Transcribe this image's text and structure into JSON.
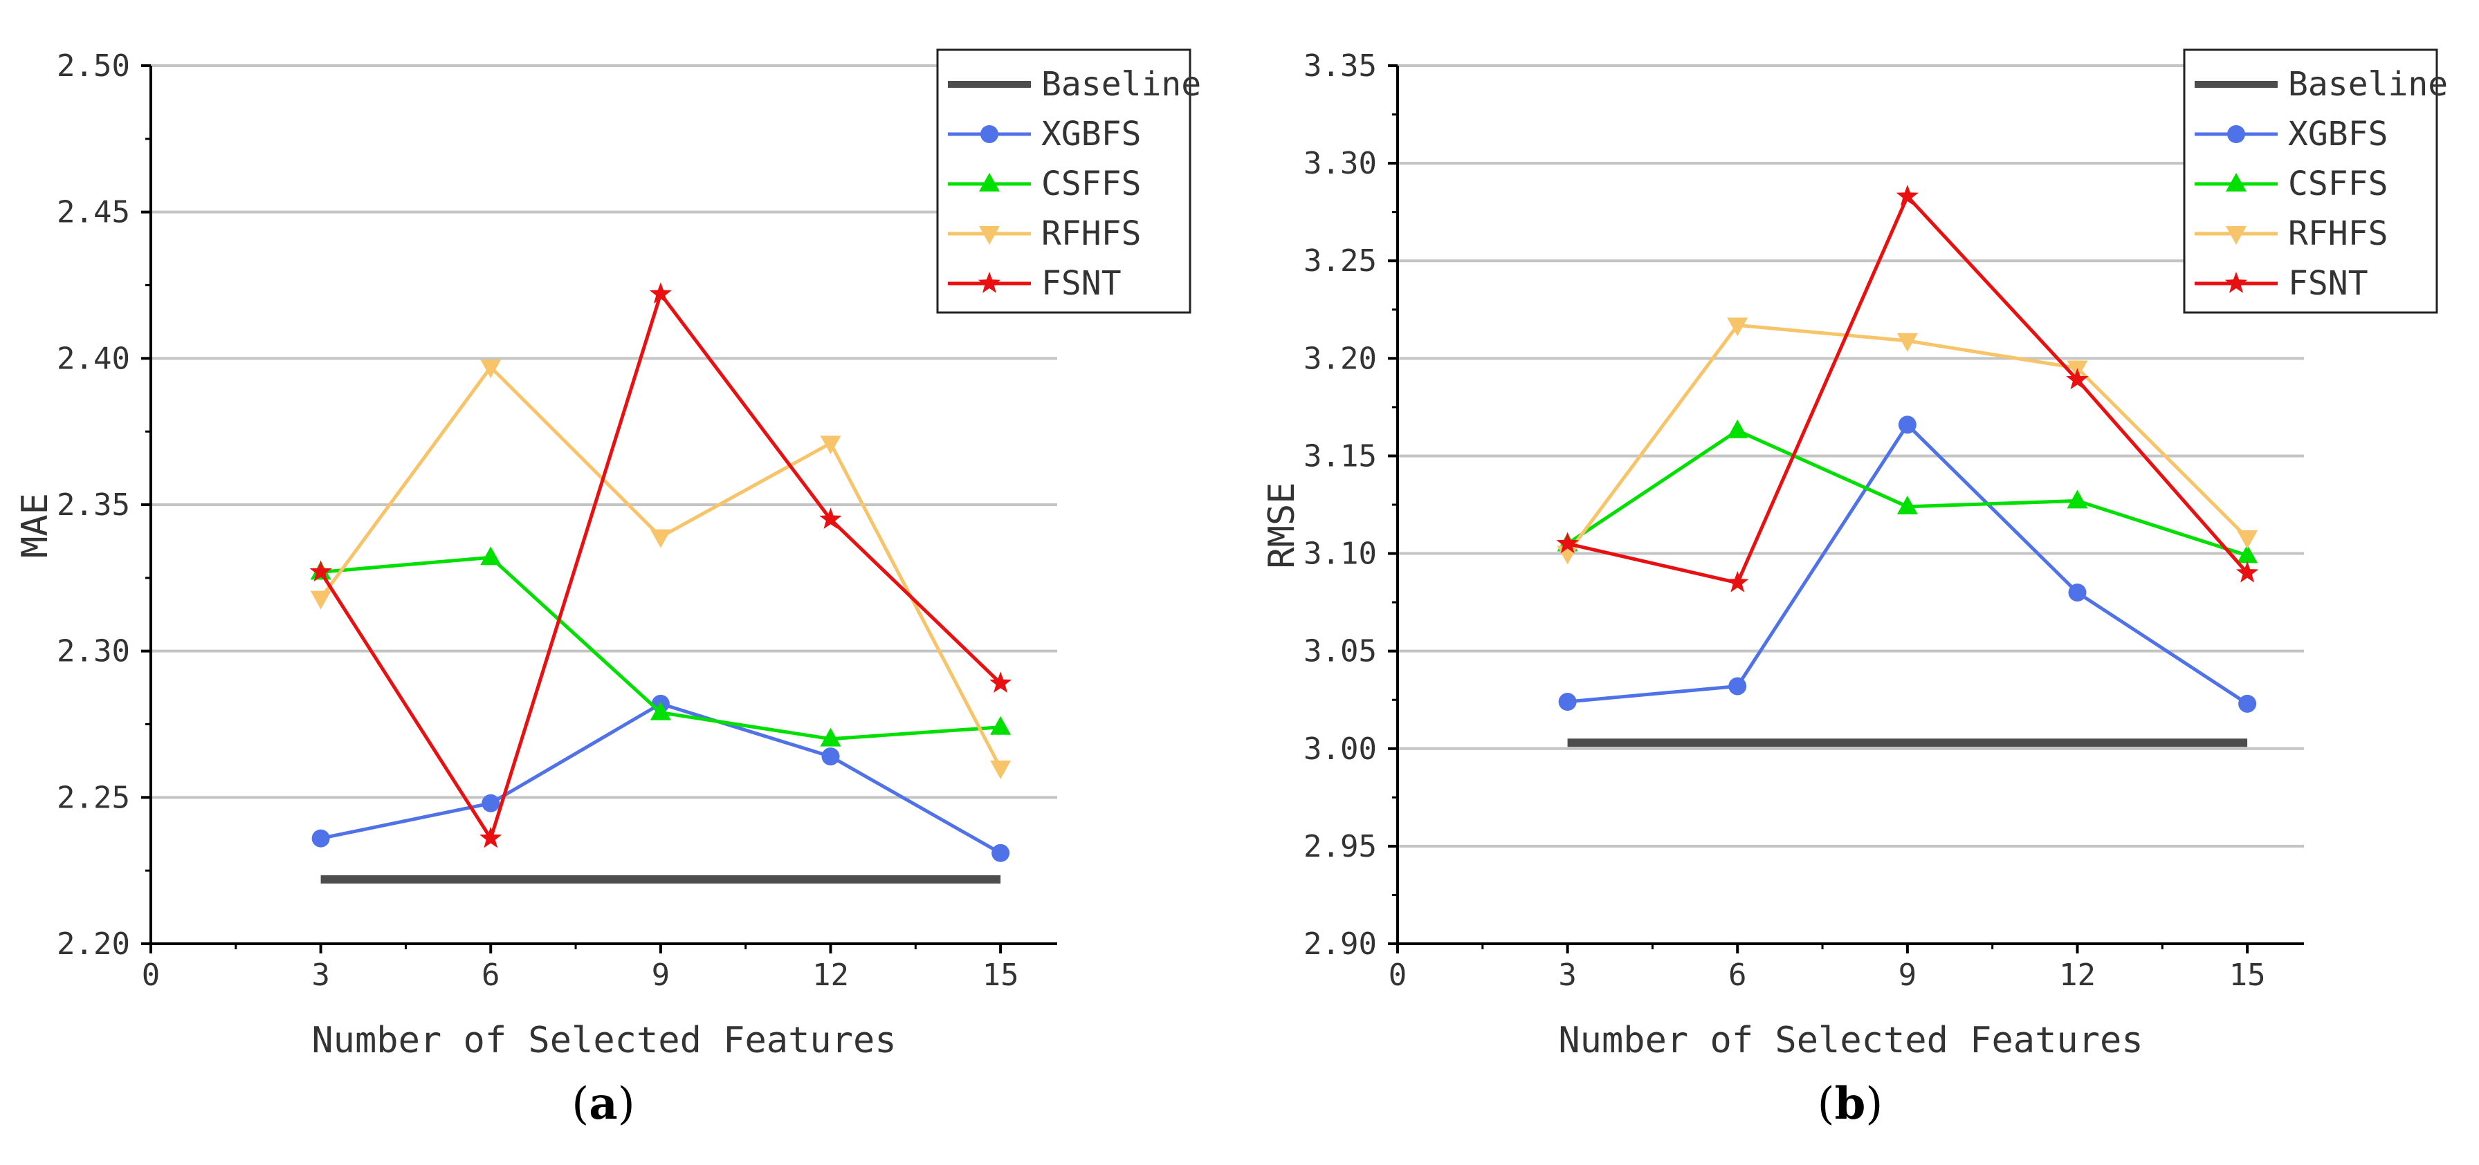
{
  "chart_data": [
    {
      "type": "line",
      "panel": "a",
      "panel_label": {
        "open": "(",
        "letter": "a",
        "close": ")"
      },
      "title": "",
      "xlabel": "Number of Selected Features",
      "ylabel": "MAE",
      "xlim": [
        0,
        16
      ],
      "ylim": [
        2.2,
        2.5
      ],
      "xticks": [
        0,
        3,
        6,
        9,
        12,
        15
      ],
      "xtick_labels": [
        "0",
        "3",
        "6",
        "9",
        "12",
        "15"
      ],
      "yticks": [
        2.2,
        2.25,
        2.3,
        2.35,
        2.4,
        2.45,
        2.5
      ],
      "ytick_labels": [
        "2.20",
        "2.25",
        "2.30",
        "2.35",
        "2.40",
        "2.45",
        "2.50"
      ],
      "grid": "horizontal",
      "legend_position": "top-right",
      "x": [
        3,
        6,
        9,
        12,
        15
      ],
      "series": [
        {
          "name": "Baseline",
          "color": "#4d4d4d",
          "marker": "none",
          "values": [
            2.222,
            2.222,
            2.222,
            2.222,
            2.222
          ]
        },
        {
          "name": "XGBFS",
          "color": "#4f72e8",
          "marker": "circle",
          "values": [
            2.236,
            2.248,
            2.282,
            2.264,
            2.231
          ]
        },
        {
          "name": "CSFFS",
          "color": "#00e000",
          "marker": "triangle-up",
          "values": [
            2.327,
            2.332,
            2.279,
            2.27,
            2.274
          ]
        },
        {
          "name": "RFHFS",
          "color": "#f7c46a",
          "marker": "triangle-down",
          "values": [
            2.318,
            2.397,
            2.339,
            2.371,
            2.26
          ]
        },
        {
          "name": "FSNT",
          "color": "#e81010",
          "marker": "star",
          "values": [
            2.327,
            2.236,
            2.422,
            2.345,
            2.289
          ]
        }
      ]
    },
    {
      "type": "line",
      "panel": "b",
      "panel_label": {
        "open": "(",
        "letter": "b",
        "close": ")"
      },
      "title": "",
      "xlabel": "Number of Selected Features",
      "ylabel": "RMSE",
      "xlim": [
        0,
        16
      ],
      "ylim": [
        2.9,
        3.35
      ],
      "xticks": [
        0,
        3,
        6,
        9,
        12,
        15
      ],
      "xtick_labels": [
        "0",
        "3",
        "6",
        "9",
        "12",
        "15"
      ],
      "yticks": [
        2.9,
        2.95,
        3.0,
        3.05,
        3.1,
        3.15,
        3.2,
        3.25,
        3.3,
        3.35
      ],
      "ytick_labels": [
        "2.90",
        "2.95",
        "3.00",
        "3.05",
        "3.10",
        "3.15",
        "3.20",
        "3.25",
        "3.30",
        "3.35"
      ],
      "grid": "horizontal",
      "legend_position": "top-right",
      "x": [
        3,
        6,
        9,
        12,
        15
      ],
      "series": [
        {
          "name": "Baseline",
          "color": "#4d4d4d",
          "marker": "none",
          "values": [
            3.003,
            3.003,
            3.003,
            3.003,
            3.003
          ]
        },
        {
          "name": "XGBFS",
          "color": "#4f72e8",
          "marker": "circle",
          "values": [
            3.024,
            3.032,
            3.166,
            3.08,
            3.023
          ]
        },
        {
          "name": "CSFFS",
          "color": "#00e000",
          "marker": "triangle-up",
          "values": [
            3.105,
            3.163,
            3.124,
            3.127,
            3.099
          ]
        },
        {
          "name": "RFHFS",
          "color": "#f7c46a",
          "marker": "triangle-down",
          "values": [
            3.1,
            3.217,
            3.209,
            3.195,
            3.108
          ]
        },
        {
          "name": "FSNT",
          "color": "#e81010",
          "marker": "star",
          "values": [
            3.105,
            3.085,
            3.283,
            3.189,
            3.09
          ]
        }
      ]
    }
  ]
}
